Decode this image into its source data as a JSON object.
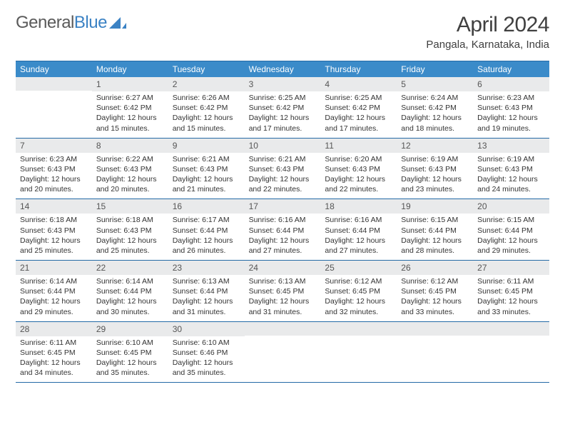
{
  "logo": {
    "text_a": "General",
    "text_b": "Blue"
  },
  "title": "April 2024",
  "subtitle": "Pangala, Karnataka, India",
  "colors": {
    "header_bg": "#3b8bc9",
    "header_text": "#ffffff",
    "rule": "#246aa6",
    "daynum_bg": "#e9eaeb",
    "daynum_text": "#555555",
    "body_text": "#333333",
    "page_bg": "#ffffff",
    "logo_gray": "#5a5a5a",
    "logo_blue": "#3b82c4"
  },
  "fontsizes": {
    "title": 30,
    "subtitle": 15,
    "dayhead": 12,
    "daynum": 12,
    "detail": 10.5
  },
  "days": [
    "Sunday",
    "Monday",
    "Tuesday",
    "Wednesday",
    "Thursday",
    "Friday",
    "Saturday"
  ],
  "weeks": [
    [
      {
        "n": "",
        "sr": "",
        "ss": "",
        "dl": ""
      },
      {
        "n": "1",
        "sr": "Sunrise: 6:27 AM",
        "ss": "Sunset: 6:42 PM",
        "dl": "Daylight: 12 hours and 15 minutes."
      },
      {
        "n": "2",
        "sr": "Sunrise: 6:26 AM",
        "ss": "Sunset: 6:42 PM",
        "dl": "Daylight: 12 hours and 15 minutes."
      },
      {
        "n": "3",
        "sr": "Sunrise: 6:25 AM",
        "ss": "Sunset: 6:42 PM",
        "dl": "Daylight: 12 hours and 17 minutes."
      },
      {
        "n": "4",
        "sr": "Sunrise: 6:25 AM",
        "ss": "Sunset: 6:42 PM",
        "dl": "Daylight: 12 hours and 17 minutes."
      },
      {
        "n": "5",
        "sr": "Sunrise: 6:24 AM",
        "ss": "Sunset: 6:42 PM",
        "dl": "Daylight: 12 hours and 18 minutes."
      },
      {
        "n": "6",
        "sr": "Sunrise: 6:23 AM",
        "ss": "Sunset: 6:43 PM",
        "dl": "Daylight: 12 hours and 19 minutes."
      }
    ],
    [
      {
        "n": "7",
        "sr": "Sunrise: 6:23 AM",
        "ss": "Sunset: 6:43 PM",
        "dl": "Daylight: 12 hours and 20 minutes."
      },
      {
        "n": "8",
        "sr": "Sunrise: 6:22 AM",
        "ss": "Sunset: 6:43 PM",
        "dl": "Daylight: 12 hours and 20 minutes."
      },
      {
        "n": "9",
        "sr": "Sunrise: 6:21 AM",
        "ss": "Sunset: 6:43 PM",
        "dl": "Daylight: 12 hours and 21 minutes."
      },
      {
        "n": "10",
        "sr": "Sunrise: 6:21 AM",
        "ss": "Sunset: 6:43 PM",
        "dl": "Daylight: 12 hours and 22 minutes."
      },
      {
        "n": "11",
        "sr": "Sunrise: 6:20 AM",
        "ss": "Sunset: 6:43 PM",
        "dl": "Daylight: 12 hours and 22 minutes."
      },
      {
        "n": "12",
        "sr": "Sunrise: 6:19 AM",
        "ss": "Sunset: 6:43 PM",
        "dl": "Daylight: 12 hours and 23 minutes."
      },
      {
        "n": "13",
        "sr": "Sunrise: 6:19 AM",
        "ss": "Sunset: 6:43 PM",
        "dl": "Daylight: 12 hours and 24 minutes."
      }
    ],
    [
      {
        "n": "14",
        "sr": "Sunrise: 6:18 AM",
        "ss": "Sunset: 6:43 PM",
        "dl": "Daylight: 12 hours and 25 minutes."
      },
      {
        "n": "15",
        "sr": "Sunrise: 6:18 AM",
        "ss": "Sunset: 6:43 PM",
        "dl": "Daylight: 12 hours and 25 minutes."
      },
      {
        "n": "16",
        "sr": "Sunrise: 6:17 AM",
        "ss": "Sunset: 6:44 PM",
        "dl": "Daylight: 12 hours and 26 minutes."
      },
      {
        "n": "17",
        "sr": "Sunrise: 6:16 AM",
        "ss": "Sunset: 6:44 PM",
        "dl": "Daylight: 12 hours and 27 minutes."
      },
      {
        "n": "18",
        "sr": "Sunrise: 6:16 AM",
        "ss": "Sunset: 6:44 PM",
        "dl": "Daylight: 12 hours and 27 minutes."
      },
      {
        "n": "19",
        "sr": "Sunrise: 6:15 AM",
        "ss": "Sunset: 6:44 PM",
        "dl": "Daylight: 12 hours and 28 minutes."
      },
      {
        "n": "20",
        "sr": "Sunrise: 6:15 AM",
        "ss": "Sunset: 6:44 PM",
        "dl": "Daylight: 12 hours and 29 minutes."
      }
    ],
    [
      {
        "n": "21",
        "sr": "Sunrise: 6:14 AM",
        "ss": "Sunset: 6:44 PM",
        "dl": "Daylight: 12 hours and 29 minutes."
      },
      {
        "n": "22",
        "sr": "Sunrise: 6:14 AM",
        "ss": "Sunset: 6:44 PM",
        "dl": "Daylight: 12 hours and 30 minutes."
      },
      {
        "n": "23",
        "sr": "Sunrise: 6:13 AM",
        "ss": "Sunset: 6:44 PM",
        "dl": "Daylight: 12 hours and 31 minutes."
      },
      {
        "n": "24",
        "sr": "Sunrise: 6:13 AM",
        "ss": "Sunset: 6:45 PM",
        "dl": "Daylight: 12 hours and 31 minutes."
      },
      {
        "n": "25",
        "sr": "Sunrise: 6:12 AM",
        "ss": "Sunset: 6:45 PM",
        "dl": "Daylight: 12 hours and 32 minutes."
      },
      {
        "n": "26",
        "sr": "Sunrise: 6:12 AM",
        "ss": "Sunset: 6:45 PM",
        "dl": "Daylight: 12 hours and 33 minutes."
      },
      {
        "n": "27",
        "sr": "Sunrise: 6:11 AM",
        "ss": "Sunset: 6:45 PM",
        "dl": "Daylight: 12 hours and 33 minutes."
      }
    ],
    [
      {
        "n": "28",
        "sr": "Sunrise: 6:11 AM",
        "ss": "Sunset: 6:45 PM",
        "dl": "Daylight: 12 hours and 34 minutes."
      },
      {
        "n": "29",
        "sr": "Sunrise: 6:10 AM",
        "ss": "Sunset: 6:45 PM",
        "dl": "Daylight: 12 hours and 35 minutes."
      },
      {
        "n": "30",
        "sr": "Sunrise: 6:10 AM",
        "ss": "Sunset: 6:46 PM",
        "dl": "Daylight: 12 hours and 35 minutes."
      },
      {
        "n": "",
        "sr": "",
        "ss": "",
        "dl": ""
      },
      {
        "n": "",
        "sr": "",
        "ss": "",
        "dl": ""
      },
      {
        "n": "",
        "sr": "",
        "ss": "",
        "dl": ""
      },
      {
        "n": "",
        "sr": "",
        "ss": "",
        "dl": ""
      }
    ]
  ]
}
